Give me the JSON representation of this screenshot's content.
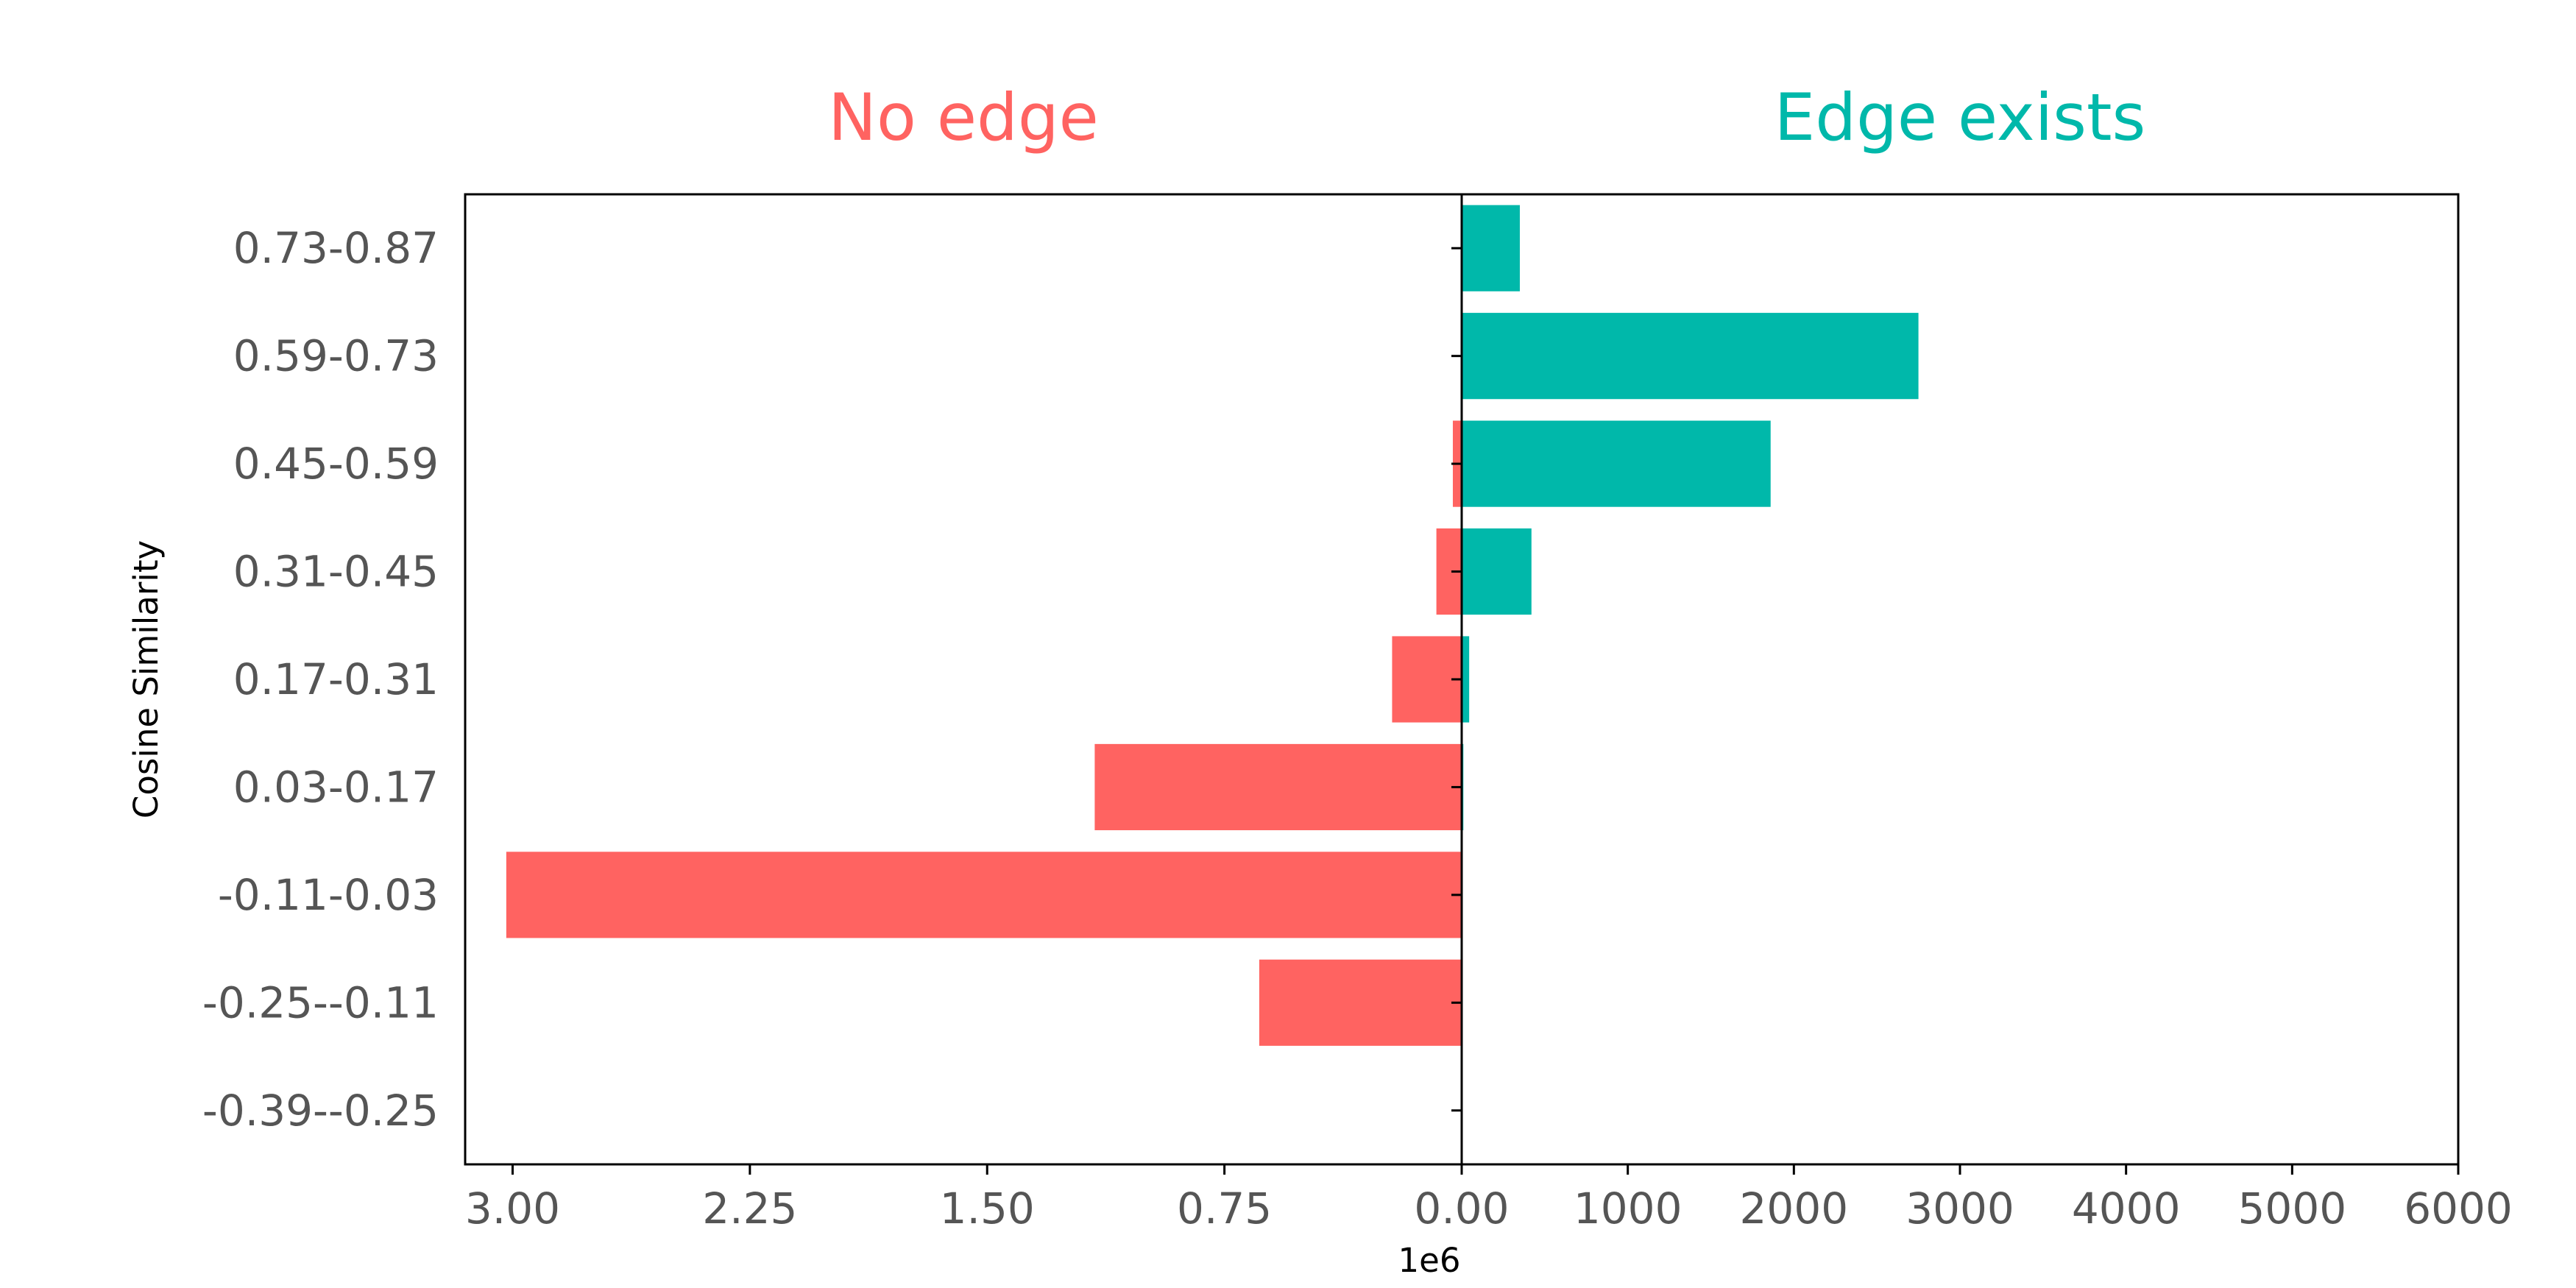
{
  "chart_data": {
    "type": "bar",
    "orientation": "horizontal",
    "layout": "back-to-back",
    "categories": [
      "0.73-0.87",
      "0.59-0.73",
      "0.45-0.59",
      "0.31-0.45",
      "0.17-0.31",
      "0.03-0.17",
      "-0.11-0.03",
      "-0.25--0.11",
      "-0.39--0.25"
    ],
    "ylabel": "Cosine Similarity",
    "colors": {
      "no_edge": "#FF6361",
      "edge": "#00B8AA"
    },
    "left_panel": {
      "title": "No edge",
      "values": [
        0,
        0,
        28000,
        80000,
        220000,
        1160000,
        3020000,
        640000,
        0
      ],
      "xlim": [
        0,
        3150000
      ],
      "direction": "reversed",
      "tick_values": [
        0,
        750000,
        1500000,
        2250000,
        3000000
      ],
      "tick_labels": [
        "0.00",
        "0.75",
        "1.50",
        "2.25",
        "3.00"
      ],
      "offset_label": "1e6"
    },
    "right_panel": {
      "title": "Edge exists",
      "values": [
        350,
        2750,
        1860,
        420,
        45,
        10,
        0,
        0,
        0
      ],
      "xlim": [
        0,
        6000
      ],
      "tick_values": [
        0,
        1000,
        2000,
        3000,
        4000,
        5000,
        6000
      ],
      "tick_labels": [
        "0.00",
        "1000",
        "2000",
        "3000",
        "4000",
        "5000",
        "6000"
      ]
    }
  }
}
